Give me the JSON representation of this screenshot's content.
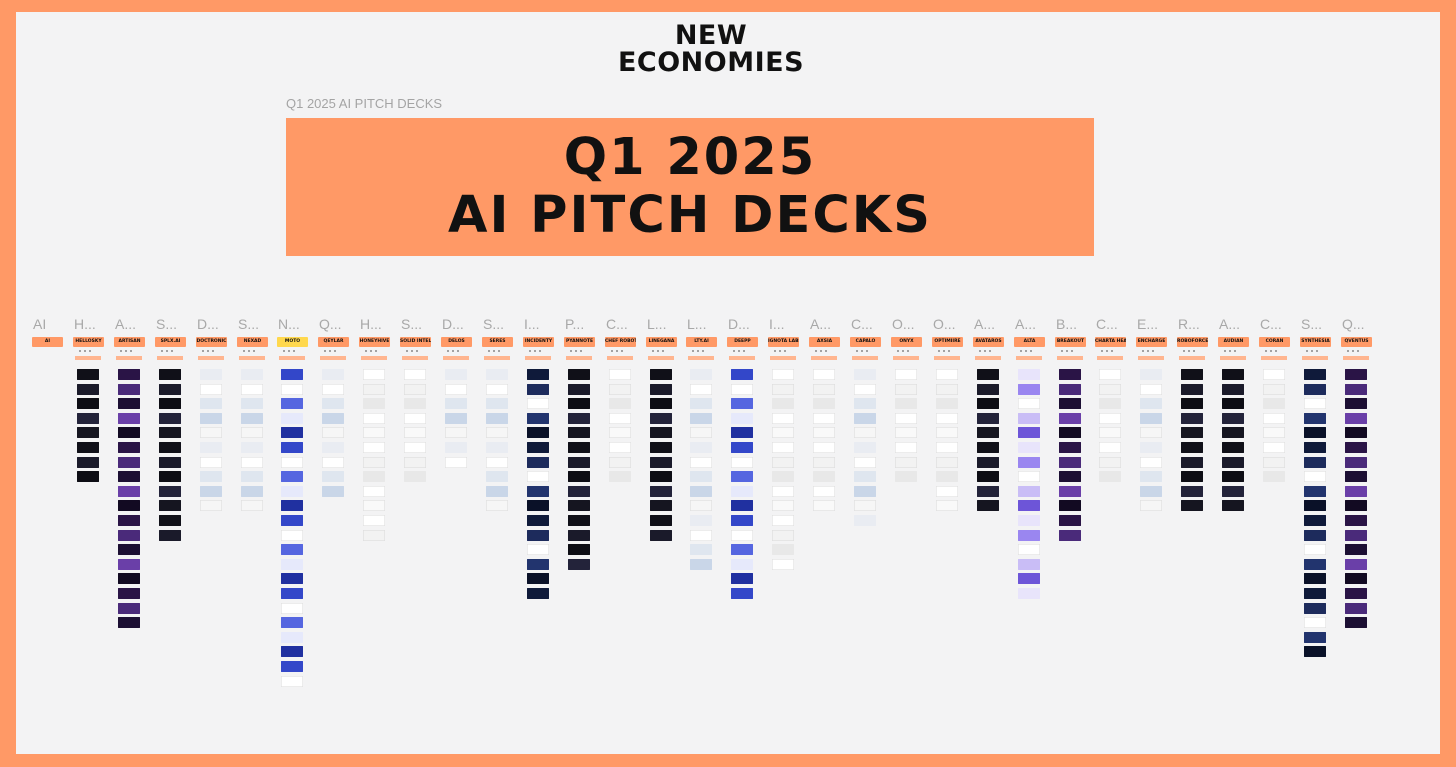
{
  "brand": {
    "line1": "NEW",
    "line2": "ECONOMIES"
  },
  "frame_label": "Q1 2025 AI PITCH DECKS",
  "banner": {
    "line1": "Q1 2025",
    "line2": "AI PITCH DECKS"
  },
  "colors": {
    "accent": "#ff9966",
    "board": "#f3f3f4",
    "highlight": "#ffd84d"
  },
  "columns": [
    {
      "letter": "AI",
      "tag": "AI",
      "tiles": 0,
      "theme": "none"
    },
    {
      "letter": "H...",
      "tag": "HELLOSKY",
      "tiles": 8,
      "theme": "dark"
    },
    {
      "letter": "A...",
      "tag": "ARTISAN",
      "tiles": 18,
      "theme": "purple"
    },
    {
      "letter": "S...",
      "tag": "SPLX.AI",
      "tiles": 12,
      "theme": "dark"
    },
    {
      "letter": "D...",
      "tag": "DOCTRONIC",
      "tiles": 10,
      "theme": "light"
    },
    {
      "letter": "S...",
      "tag": "NEXAD",
      "tiles": 10,
      "theme": "light"
    },
    {
      "letter": "N...",
      "tag": "MOTO",
      "tiles": 22,
      "theme": "blue",
      "highlight": true
    },
    {
      "letter": "Q...",
      "tag": "QEYLAR",
      "tiles": 9,
      "theme": "light"
    },
    {
      "letter": "H...",
      "tag": "HONEYHIVE",
      "tiles": 12,
      "theme": "white"
    },
    {
      "letter": "S...",
      "tag": "SOLID INTELLIGENCE",
      "tiles": 8,
      "theme": "white"
    },
    {
      "letter": "D...",
      "tag": "DELOS",
      "tiles": 7,
      "theme": "light"
    },
    {
      "letter": "S...",
      "tag": "SERES",
      "tiles": 10,
      "theme": "light"
    },
    {
      "letter": "I...",
      "tag": "INCIDENTY",
      "tiles": 16,
      "theme": "navy"
    },
    {
      "letter": "P...",
      "tag": "PYANNOTE",
      "tiles": 14,
      "theme": "dark"
    },
    {
      "letter": "C...",
      "tag": "CHEF ROBOTICS",
      "tiles": 8,
      "theme": "white"
    },
    {
      "letter": "L...",
      "tag": "LINEGANA",
      "tiles": 12,
      "theme": "dark"
    },
    {
      "letter": "L...",
      "tag": "LTY.AI",
      "tiles": 14,
      "theme": "light"
    },
    {
      "letter": "D...",
      "tag": "DEEPP",
      "tiles": 16,
      "theme": "blue"
    },
    {
      "letter": "I...",
      "tag": "IGNOTA LABS",
      "tiles": 14,
      "theme": "white"
    },
    {
      "letter": "A...",
      "tag": "AXSIA",
      "tiles": 10,
      "theme": "white"
    },
    {
      "letter": "C...",
      "tag": "CAPALO",
      "tiles": 11,
      "theme": "light"
    },
    {
      "letter": "O...",
      "tag": "ONYX",
      "tiles": 8,
      "theme": "white"
    },
    {
      "letter": "O...",
      "tag": "OPTIMIIRE",
      "tiles": 10,
      "theme": "white"
    },
    {
      "letter": "A...",
      "tag": "AVATAROS",
      "tiles": 10,
      "theme": "dark"
    },
    {
      "letter": "A...",
      "tag": "ALTA",
      "tiles": 16,
      "theme": "lavender"
    },
    {
      "letter": "B...",
      "tag": "BREAKOUT",
      "tiles": 12,
      "theme": "purple"
    },
    {
      "letter": "C...",
      "tag": "CHARTA HEALTH",
      "tiles": 8,
      "theme": "white"
    },
    {
      "letter": "E...",
      "tag": "ENCHARGE",
      "tiles": 10,
      "theme": "light"
    },
    {
      "letter": "R...",
      "tag": "ROBOFORCE",
      "tiles": 10,
      "theme": "dark"
    },
    {
      "letter": "A...",
      "tag": "AUDIAN",
      "tiles": 10,
      "theme": "dark"
    },
    {
      "letter": "C...",
      "tag": "CORAN",
      "tiles": 8,
      "theme": "white"
    },
    {
      "letter": "S...",
      "tag": "SYNTHESIA",
      "tiles": 20,
      "theme": "navy"
    },
    {
      "letter": "Q...",
      "tag": "QVENTUS",
      "tiles": 18,
      "theme": "purple"
    }
  ]
}
